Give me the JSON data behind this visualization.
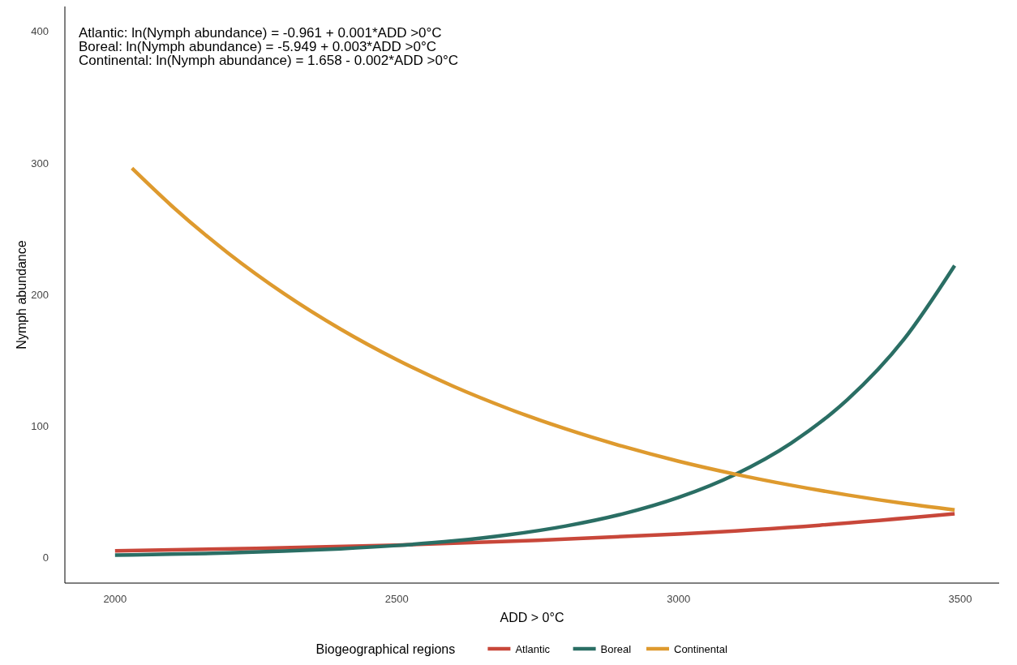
{
  "chart_data": {
    "type": "line",
    "xlabel": "ADD > 0°C",
    "ylabel": "Nymph abundance",
    "legend_title": "Biogeographical regions",
    "annotations": [
      "Atlantic: ln(Nymph abundance) = -0.961 + 0.001*ADD >0°C",
      "Boreal: ln(Nymph abundance) = -5.949 + 0.003*ADD >0°C",
      "Continental: ln(Nymph abundance) = 1.658 - 0.002*ADD >0°C"
    ],
    "xlim": [
      1911,
      3569
    ],
    "ylim": [
      -19.5,
      419
    ],
    "xticks": [
      2000,
      2500,
      3000,
      3500
    ],
    "yticks": [
      0,
      100,
      200,
      300,
      400
    ],
    "grid": false,
    "legend": "bottom",
    "marker": "none",
    "line_style": "solid",
    "series": [
      {
        "name": "Atlantic",
        "color": "#c8473a",
        "x": [
          2000,
          2250,
          2500,
          2750,
          3000,
          3250,
          3490
        ],
        "values": [
          5,
          6.9,
          9.4,
          13,
          17.8,
          24.5,
          33.2
        ]
      },
      {
        "name": "Boreal",
        "color": "#2a6e64",
        "x": [
          2000,
          2100,
          2200,
          2300,
          2400,
          2500,
          2600,
          2700,
          2800,
          2900,
          3000,
          3100,
          3200,
          3300,
          3400,
          3490
        ],
        "values": [
          1.8,
          2.5,
          3.4,
          4.8,
          6.6,
          9.1,
          12.5,
          17.3,
          23.9,
          33,
          45.6,
          63,
          87,
          120.1,
          165.9,
          222
        ]
      },
      {
        "name": "Continental",
        "color": "#de9a2e",
        "x": [
          2030,
          2100,
          2200,
          2300,
          2400,
          2500,
          2600,
          2700,
          2800,
          2900,
          3000,
          3100,
          3200,
          3300,
          3400,
          3490
        ],
        "values": [
          296,
          267.6,
          231.7,
          200.6,
          173.7,
          150.4,
          130.2,
          112.8,
          97.7,
          84.6,
          73.2,
          63.4,
          54.9,
          47.5,
          41.1,
          36.2
        ]
      }
    ]
  }
}
